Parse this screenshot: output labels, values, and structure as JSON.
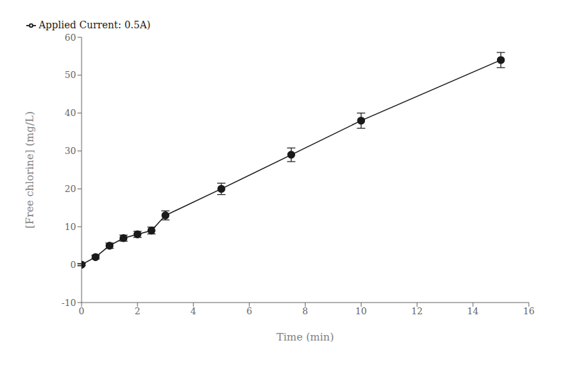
{
  "chart_data": {
    "type": "line",
    "x": [
      0,
      0.5,
      1,
      1.5,
      2,
      2.5,
      3,
      5,
      7.5,
      10,
      15
    ],
    "series": [
      {
        "name": "Applied Current: 0.5A)",
        "color": "#1a1a1a",
        "marker": "o",
        "values": [
          0,
          2,
          5,
          7,
          8,
          9,
          13,
          20,
          29,
          38,
          54
        ],
        "yerr": [
          0.3,
          0.5,
          0.7,
          0.8,
          0.8,
          0.9,
          1.2,
          1.5,
          1.8,
          2.0,
          2.0
        ]
      }
    ],
    "xlabel": "Time (min)",
    "ylabel": "[Free chlorine] (mg/L)",
    "xlim": [
      0,
      16
    ],
    "ylim": [
      -10,
      60
    ],
    "xticks": [
      0,
      2,
      4,
      6,
      8,
      10,
      12,
      14,
      16
    ],
    "yticks": [
      -10,
      0,
      10,
      20,
      30,
      40,
      50,
      60
    ],
    "grid": false,
    "legend": "upper left"
  }
}
